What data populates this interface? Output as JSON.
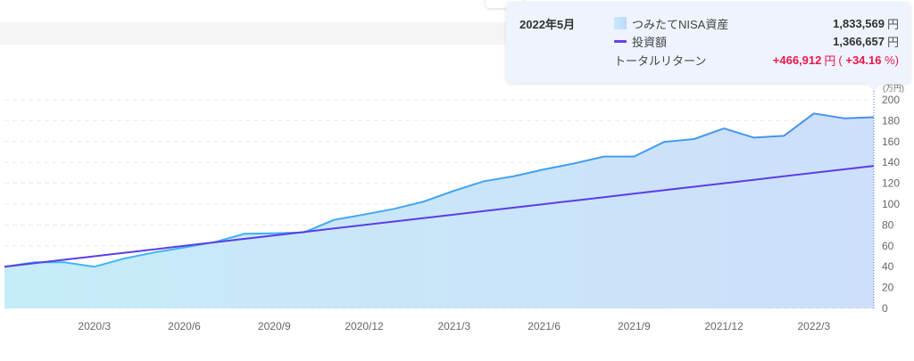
{
  "tooltip": {
    "date": "2022年5月",
    "rows": [
      {
        "label": "つみたてNISA資産",
        "value": "1,833,569",
        "unit": "円"
      },
      {
        "label": "投資額",
        "value": "1,366,657",
        "unit": "円"
      }
    ],
    "total_return": {
      "label": "トータルリターン",
      "value": "+466,912",
      "unit": "円",
      "pct_open": "(",
      "pct": "+34.16",
      "pct_close": "%)"
    }
  },
  "colors": {
    "area_left": "#c6ecf9",
    "area_right": "#cddff9",
    "nisa_line_left": "#3cbcf2",
    "nisa_line_right": "#4a8eea",
    "invest_line": "#5a3ee6",
    "return_red": "#e8194b",
    "cursor_line": "#4f74e0",
    "grid": "#e9e9e9"
  },
  "chart_data": {
    "type": "area",
    "title": "",
    "xlabel": "",
    "ylabel": "(万円)",
    "y_unit_label": "(万円)",
    "ylim": [
      0,
      200
    ],
    "y_ticks": [
      0,
      20,
      40,
      60,
      80,
      100,
      120,
      140,
      160,
      180,
      200
    ],
    "grid": true,
    "legend_position": "tooltip",
    "x": [
      "2019/12",
      "2020/1",
      "2020/2",
      "2020/3",
      "2020/4",
      "2020/5",
      "2020/6",
      "2020/7",
      "2020/8",
      "2020/9",
      "2020/10",
      "2020/11",
      "2020/12",
      "2021/1",
      "2021/2",
      "2021/3",
      "2021/4",
      "2021/5",
      "2021/6",
      "2021/7",
      "2021/8",
      "2021/9",
      "2021/10",
      "2021/11",
      "2021/12",
      "2022/1",
      "2022/2",
      "2022/3",
      "2022/4",
      "2022/5"
    ],
    "x_tick_labels": [
      "2020/3",
      "2020/6",
      "2020/9",
      "2020/12",
      "2021/3",
      "2021/6",
      "2021/9",
      "2021/12",
      "2022/3"
    ],
    "series": [
      {
        "name": "つみたてNISA資産",
        "style": "area",
        "values": [
          40,
          44.2,
          44.2,
          40,
          47.9,
          53.7,
          58.5,
          63.5,
          71.5,
          72,
          73,
          85,
          90,
          95.5,
          102.6,
          112.8,
          122,
          126.8,
          133.3,
          139,
          145.6,
          145.6,
          159.6,
          162.4,
          172.6,
          163.8,
          165.5,
          186.9,
          182.3,
          183.36
        ]
      },
      {
        "name": "投資額",
        "style": "line",
        "values": [
          40,
          43.33,
          46.67,
          50,
          53.33,
          56.67,
          60,
          63.33,
          66.67,
          70,
          73.33,
          76.67,
          80,
          83.33,
          86.67,
          90,
          93.33,
          96.67,
          100,
          103.33,
          106.67,
          110,
          113.33,
          116.67,
          120,
          123.33,
          126.67,
          130,
          133.33,
          136.67
        ]
      }
    ],
    "highlighted_x": "2022/5"
  }
}
